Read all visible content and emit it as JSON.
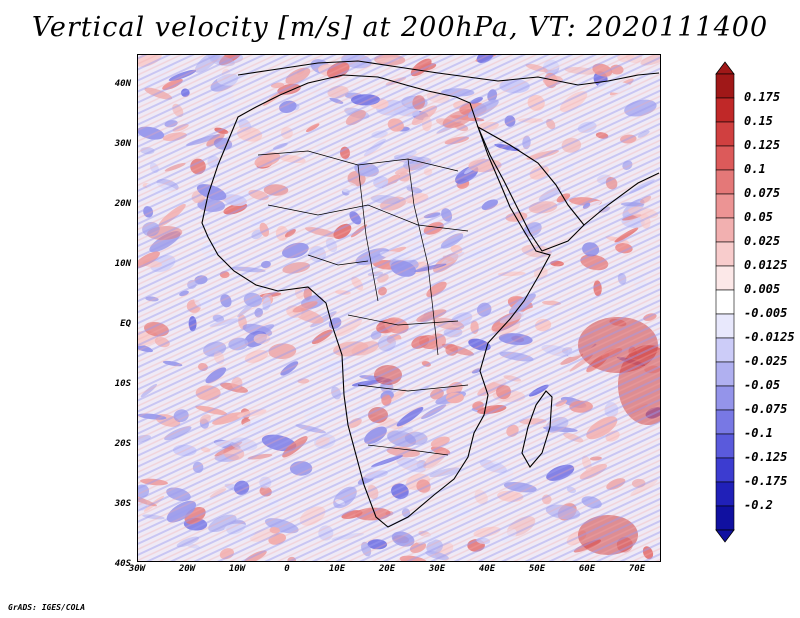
{
  "title": "Vertical velocity [m/s] at 200hPa, VT: 2020111400",
  "footer": "GrADS: IGES/COLA",
  "map": {
    "lat_range": [
      -40,
      45
    ],
    "lon_range": [
      -30,
      75
    ]
  },
  "axes": {
    "y_ticks": [
      "40N",
      "30N",
      "20N",
      "10N",
      "EQ",
      "10S",
      "20S",
      "30S",
      "40S"
    ],
    "x_ticks": [
      "30W",
      "20W",
      "10W",
      "0",
      "10E",
      "20E",
      "30E",
      "40E",
      "50E",
      "60E",
      "70E"
    ]
  },
  "colorbar": {
    "labels": [
      "0.175",
      "0.15",
      "0.125",
      "0.1",
      "0.075",
      "0.05",
      "0.025",
      "0.0125",
      "0.005",
      "-0.005",
      "-0.0125",
      "-0.025",
      "-0.05",
      "-0.075",
      "-0.1",
      "-0.125",
      "-0.175",
      "-0.2"
    ],
    "colors": [
      "#a01818",
      "#c02828",
      "#d04040",
      "#dc5a5a",
      "#e47878",
      "#ec9494",
      "#f2b0b0",
      "#f8cccc",
      "#fce8e8",
      "#ffffff",
      "#e8e8fc",
      "#ccccf8",
      "#b0b0f0",
      "#9494ea",
      "#7878e4",
      "#5a5adc",
      "#3c3cd0",
      "#2020b8",
      "#1010a0"
    ]
  }
}
